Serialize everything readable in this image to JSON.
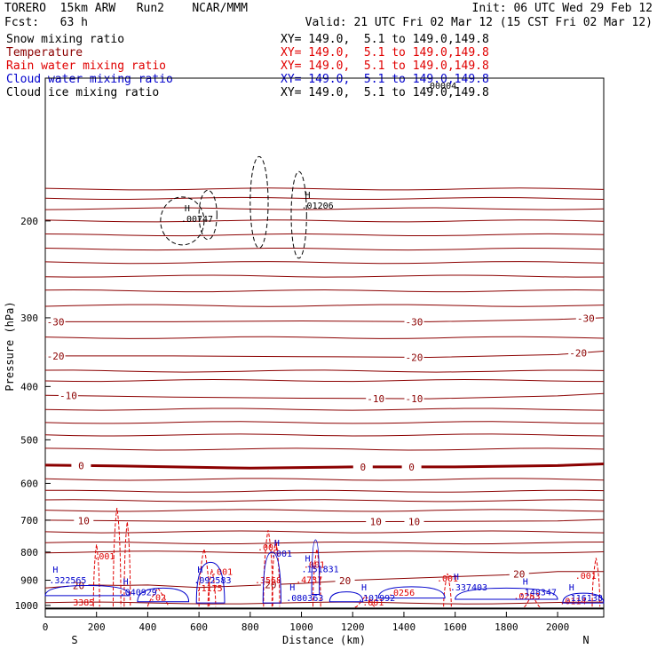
{
  "header": {
    "model": "TORERO  15km ARW   Run2    NCAR/MMM",
    "init": "Init: 06 UTC Wed 29 Feb 12",
    "fcst": "Fcst:   63 h",
    "valid": "Valid: 21 UTC Fri 02 Mar 12 (15 CST Fri 02 Mar 12)"
  },
  "fields": [
    {
      "name": "Snow mixing ratio",
      "xy": "XY= 149.0,  5.1 to 149.0,149.8",
      "color": "#000000"
    },
    {
      "name": "Temperature",
      "xy": "XY= 149.0,  5.1 to 149.0,149.8",
      "color": "#8b0000"
    },
    {
      "name": "Rain water mixing ratio",
      "xy": "XY= 149.0,  5.1 to 149.0,149.8",
      "color": "#e00000"
    },
    {
      "name": "Cloud water mixing ratio",
      "xy": "XY= 149.0,  5.1 to 149.0,149.8",
      "color": "#0000cc"
    },
    {
      "name": "Cloud ice mixing ratio",
      "xy": "XY= 149.0,  5.1 to 149.0,149.8",
      "color": "#000000"
    }
  ],
  "colors": {
    "temperature": "#8b0000",
    "rain": "#e00000",
    "cloud_water": "#0000cc",
    "ice": "#000000"
  },
  "chart_data": {
    "type": "contour",
    "xlabel": "Distance (km)",
    "ylabel": "Pressure (hPa)",
    "x_ticks": [
      0,
      200,
      400,
      600,
      800,
      1000,
      1200,
      1400,
      1600,
      1800,
      2000
    ],
    "y_ticks": [
      200,
      300,
      400,
      500,
      600,
      700,
      800,
      900,
      1000
    ],
    "xlim": [
      0,
      2180
    ],
    "ylim": [
      1050,
      110
    ],
    "y_scale": "log",
    "end_labels": {
      "left": "S",
      "right": "N"
    },
    "ice_extra_label": ".00004",
    "temperature_contours": [
      {
        "label": "-30",
        "label_x": [
          40,
          1440,
          2110
        ],
        "points": [
          [
            0,
            305
          ],
          [
            500,
            305
          ],
          [
            1000,
            304
          ],
          [
            1500,
            305
          ],
          [
            2000,
            302
          ],
          [
            2180,
            300
          ]
        ]
      },
      {
        "label": "-20",
        "label_x": [
          40,
          1440,
          2080
        ],
        "points": [
          [
            0,
            352
          ],
          [
            500,
            352
          ],
          [
            1000,
            353
          ],
          [
            1500,
            354
          ],
          [
            2000,
            350
          ],
          [
            2180,
            345
          ]
        ]
      },
      {
        "label": "-10",
        "label_x": [
          90,
          1290,
          1440
        ],
        "points": [
          [
            0,
            415
          ],
          [
            500,
            418
          ],
          [
            1000,
            420
          ],
          [
            1500,
            421
          ],
          [
            2000,
            416
          ],
          [
            2180,
            412
          ]
        ]
      },
      {
        "label": "0",
        "label_x": [
          140,
          1240,
          1430
        ],
        "points": [
          [
            0,
            556
          ],
          [
            300,
            558
          ],
          [
            800,
            563
          ],
          [
            1200,
            560
          ],
          [
            1600,
            560
          ],
          [
            2000,
            557
          ],
          [
            2180,
            553
          ]
        ],
        "bold": true
      },
      {
        "label": "10",
        "label_x": [
          150,
          1290,
          1440
        ],
        "points": [
          [
            0,
            700
          ],
          [
            500,
            703
          ],
          [
            1000,
            705
          ],
          [
            1500,
            704
          ],
          [
            2000,
            702
          ],
          [
            2180,
            698
          ]
        ]
      },
      {
        "label": "20",
        "label_x": [
          130,
          880,
          1170,
          1850
        ],
        "points": [
          [
            0,
            930
          ],
          [
            150,
            918
          ],
          [
            300,
            920
          ],
          [
            400,
            918
          ],
          [
            600,
            928
          ],
          [
            850,
            918
          ],
          [
            1000,
            912
          ],
          [
            1200,
            900
          ],
          [
            1500,
            890
          ],
          [
            1800,
            880
          ],
          [
            2000,
            868
          ],
          [
            2180,
            868
          ]
        ]
      }
    ],
    "temperature_unlabeled_levels": [
      175,
      182,
      190,
      200,
      212,
      225,
      238,
      252,
      268,
      285,
      326,
      375,
      390,
      440,
      465,
      490,
      520,
      590,
      620,
      645,
      672,
      735,
      770,
      800,
      990
    ],
    "rain_labels": [
      {
        "text": ".001",
        "x": 230,
        "p": 825
      },
      {
        "text": ".001",
        "x": 690,
        "p": 880
      },
      {
        "text": ".001",
        "x": 870,
        "p": 795
      },
      {
        "text": ".001",
        "x": 1050,
        "p": 855
      },
      {
        "text": ".001",
        "x": 1570,
        "p": 905
      },
      {
        "text": ".001",
        "x": 2110,
        "p": 895
      },
      {
        "text": ".001",
        "x": 1280,
        "p": 1000
      },
      {
        "text": ".02",
        "x": 440,
        "p": 980
      },
      {
        "text": ".0256",
        "x": 1390,
        "p": 960
      },
      {
        "text": ".0253",
        "x": 1880,
        "p": 975
      },
      {
        "text": ".1175",
        "x": 640,
        "p": 942
      },
      {
        "text": ".3568",
        "x": 870,
        "p": 912
      },
      {
        "text": ".4737",
        "x": 1030,
        "p": 910
      },
      {
        "text": "3385",
        "x": 150,
        "p": 1000
      },
      {
        "text": ".0114",
        "x": 2060,
        "p": 995
      }
    ],
    "cloud_maxima": [
      {
        "text": ".322565",
        "x": 15,
        "p": 912
      },
      {
        "text": ".040929",
        "x": 290,
        "p": 958
      },
      {
        "text": ".092583",
        "x": 580,
        "p": 912
      },
      {
        "text": ".080363",
        "x": 940,
        "p": 982
      },
      {
        "text": ".151831",
        "x": 1000,
        "p": 870
      },
      {
        "text": ".001",
        "x": 880,
        "p": 815
      },
      {
        "text": ".101992",
        "x": 1220,
        "p": 982
      },
      {
        "text": ".337403",
        "x": 1580,
        "p": 940
      },
      {
        "text": ".148347",
        "x": 1850,
        "p": 958
      },
      {
        "text": ".116138",
        "x": 2030,
        "p": 982
      }
    ],
    "ice_maxima": [
      {
        "text": ".00747",
        "x": 530,
        "p": 201
      },
      {
        "text": ".01206",
        "x": 1000,
        "p": 190
      }
    ]
  }
}
